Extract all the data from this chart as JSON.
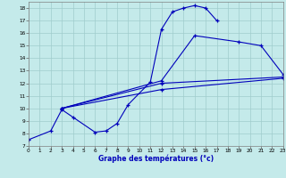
{
  "xlabel": "Graphe des températures (°c)",
  "xlim": [
    0,
    23
  ],
  "ylim": [
    7,
    18.5
  ],
  "yticks": [
    7,
    8,
    9,
    10,
    11,
    12,
    13,
    14,
    15,
    16,
    17,
    18
  ],
  "xticks": [
    0,
    1,
    2,
    3,
    4,
    5,
    6,
    7,
    8,
    9,
    10,
    11,
    12,
    13,
    14,
    15,
    16,
    17,
    18,
    19,
    20,
    21,
    22,
    23
  ],
  "bg_color": "#c4eaea",
  "grid_color": "#a0cccc",
  "line_color": "#0000bb",
  "lines": [
    {
      "x": [
        0,
        2,
        3,
        4,
        6,
        7,
        8,
        9,
        11,
        12,
        13,
        14,
        15,
        16,
        17
      ],
      "y": [
        7.5,
        8.2,
        9.9,
        9.3,
        8.1,
        8.2,
        8.8,
        10.3,
        12.1,
        16.3,
        17.7,
        18.0,
        18.2,
        18.0,
        17.0
      ]
    },
    {
      "x": [
        3,
        12,
        15,
        19,
        21,
        23
      ],
      "y": [
        10.0,
        12.2,
        15.8,
        15.3,
        15.0,
        12.7
      ]
    },
    {
      "x": [
        3,
        12,
        23
      ],
      "y": [
        10.0,
        12.0,
        12.5
      ]
    },
    {
      "x": [
        3,
        12,
        23
      ],
      "y": [
        10.0,
        11.5,
        12.4
      ]
    }
  ],
  "figsize": [
    3.2,
    2.0
  ],
  "dpi": 100
}
